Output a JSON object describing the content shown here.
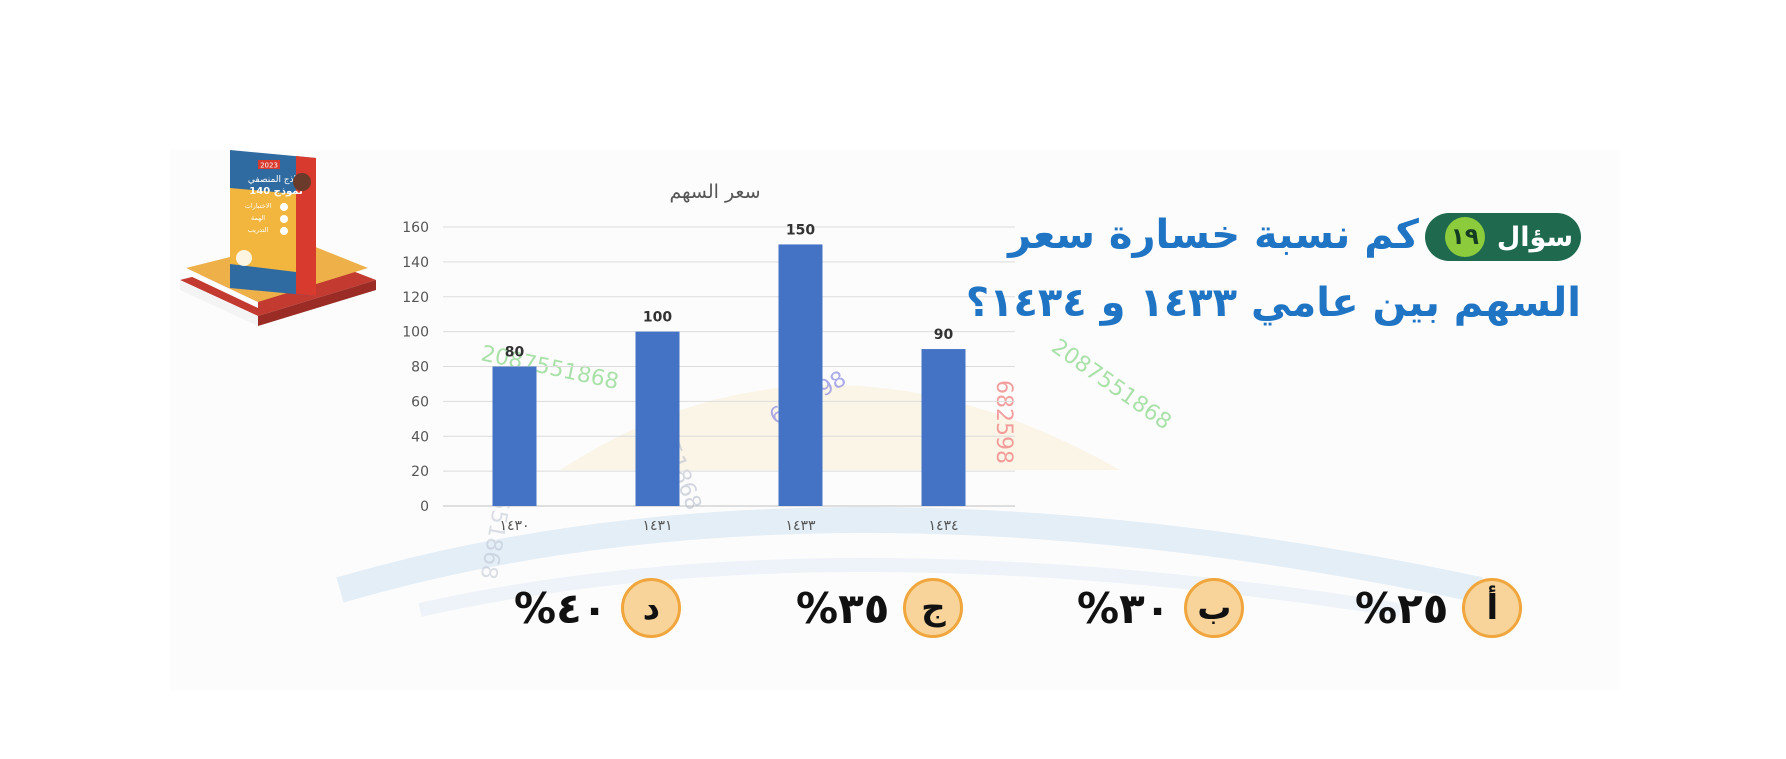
{
  "question": {
    "badge_label": "سؤال",
    "badge_number": "١٩",
    "line1": "كم نسبة خسارة سعر",
    "line2": "السهم بين عامي ١٤٣٣ و ١٤٣٤؟"
  },
  "options": [
    {
      "letter": "أ",
      "value": "٢٥%"
    },
    {
      "letter": "ب",
      "value": "٣٠%"
    },
    {
      "letter": "ج",
      "value": "٣٥%"
    },
    {
      "letter": "د",
      "value": "٤٠%"
    }
  ],
  "chart_data": {
    "type": "bar",
    "title": "سعر السهم",
    "categories": [
      "١٤٣٠",
      "١٤٣١",
      "١٤٣٣",
      "١٤٣٤"
    ],
    "values": [
      80,
      100,
      150,
      90
    ],
    "xlabel": "",
    "ylabel": "",
    "ylim": [
      0,
      160
    ],
    "yticks": [
      0,
      20,
      40,
      60,
      80,
      100,
      120,
      140,
      160
    ],
    "grid": true,
    "legend": "none",
    "bar_color": "#4472c4"
  },
  "book": {
    "badge_year": "2023",
    "title": "نماذج المنصفي",
    "subtitle": "140 نموذج",
    "items": [
      "الاختبارات",
      "الهمة",
      "التدريب"
    ]
  },
  "watermarks": [
    "2087551868",
    "682598"
  ],
  "colors": {
    "question_text": "#1f74c4",
    "badge_bg": "#1f6a4e",
    "badge_number_bg": "#8ccc3c",
    "option_circle_fill": "#f8d49b",
    "option_circle_border": "#f0a63c"
  }
}
